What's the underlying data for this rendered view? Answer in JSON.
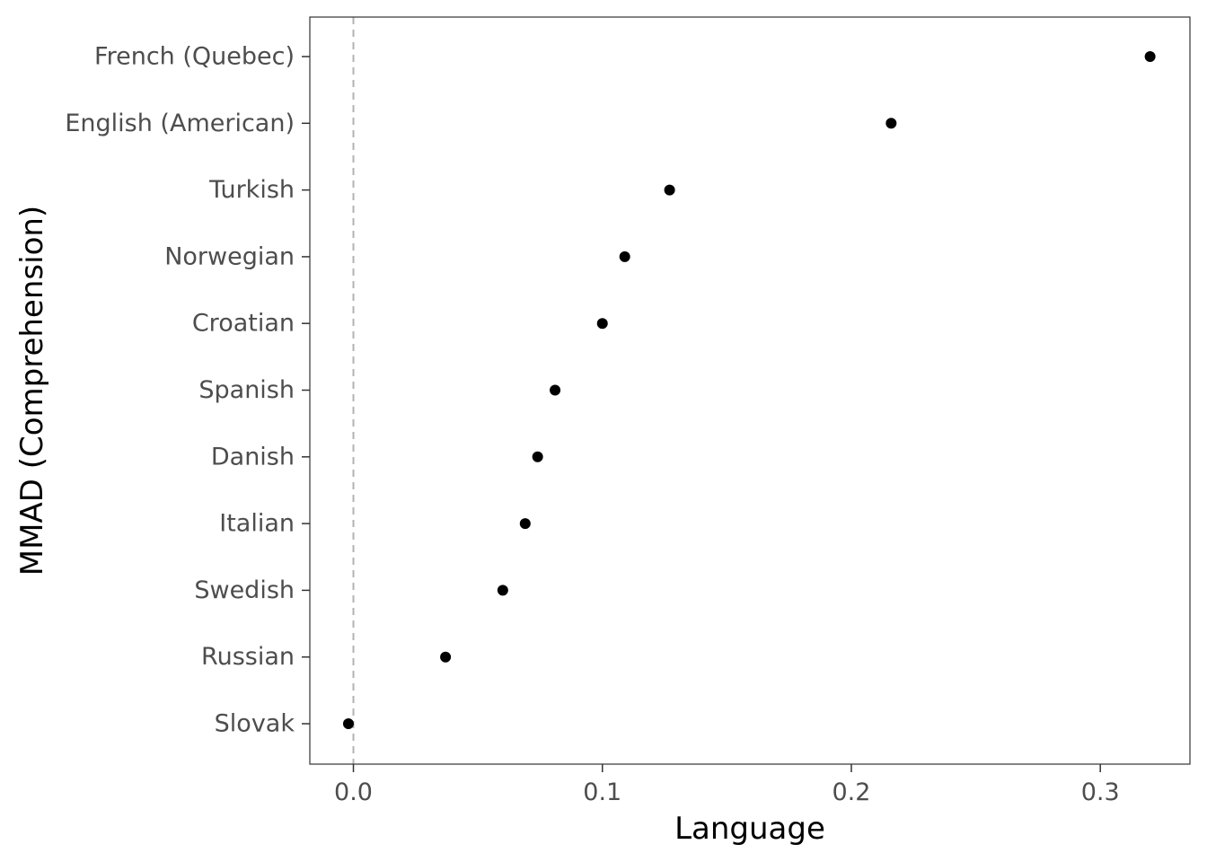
{
  "chart_data": {
    "type": "scatter",
    "title": "",
    "xlabel": "Language",
    "ylabel": "MMAD (Comprehension)",
    "xlim": [
      -0.0175,
      0.336
    ],
    "xticks": [
      0.0,
      0.1,
      0.2,
      0.3
    ],
    "xtick_labels": [
      "0.0",
      "0.1",
      "0.2",
      "0.3"
    ],
    "categories": [
      "Slovak",
      "Russian",
      "Swedish",
      "Italian",
      "Danish",
      "Spanish",
      "Croatian",
      "Norwegian",
      "Turkish",
      "English (American)",
      "French (Quebec)"
    ],
    "values": [
      -0.002,
      0.037,
      0.06,
      0.069,
      0.074,
      0.081,
      0.1,
      0.109,
      0.127,
      0.216,
      0.32
    ],
    "reference_line": {
      "x": 0.0,
      "style": "dashed"
    },
    "grid": false,
    "legend": "none",
    "colors": {
      "point": "#000000",
      "reference_line": "#b3b3b3",
      "frame": "#333333",
      "tick_label": "#4d4d4d"
    }
  }
}
